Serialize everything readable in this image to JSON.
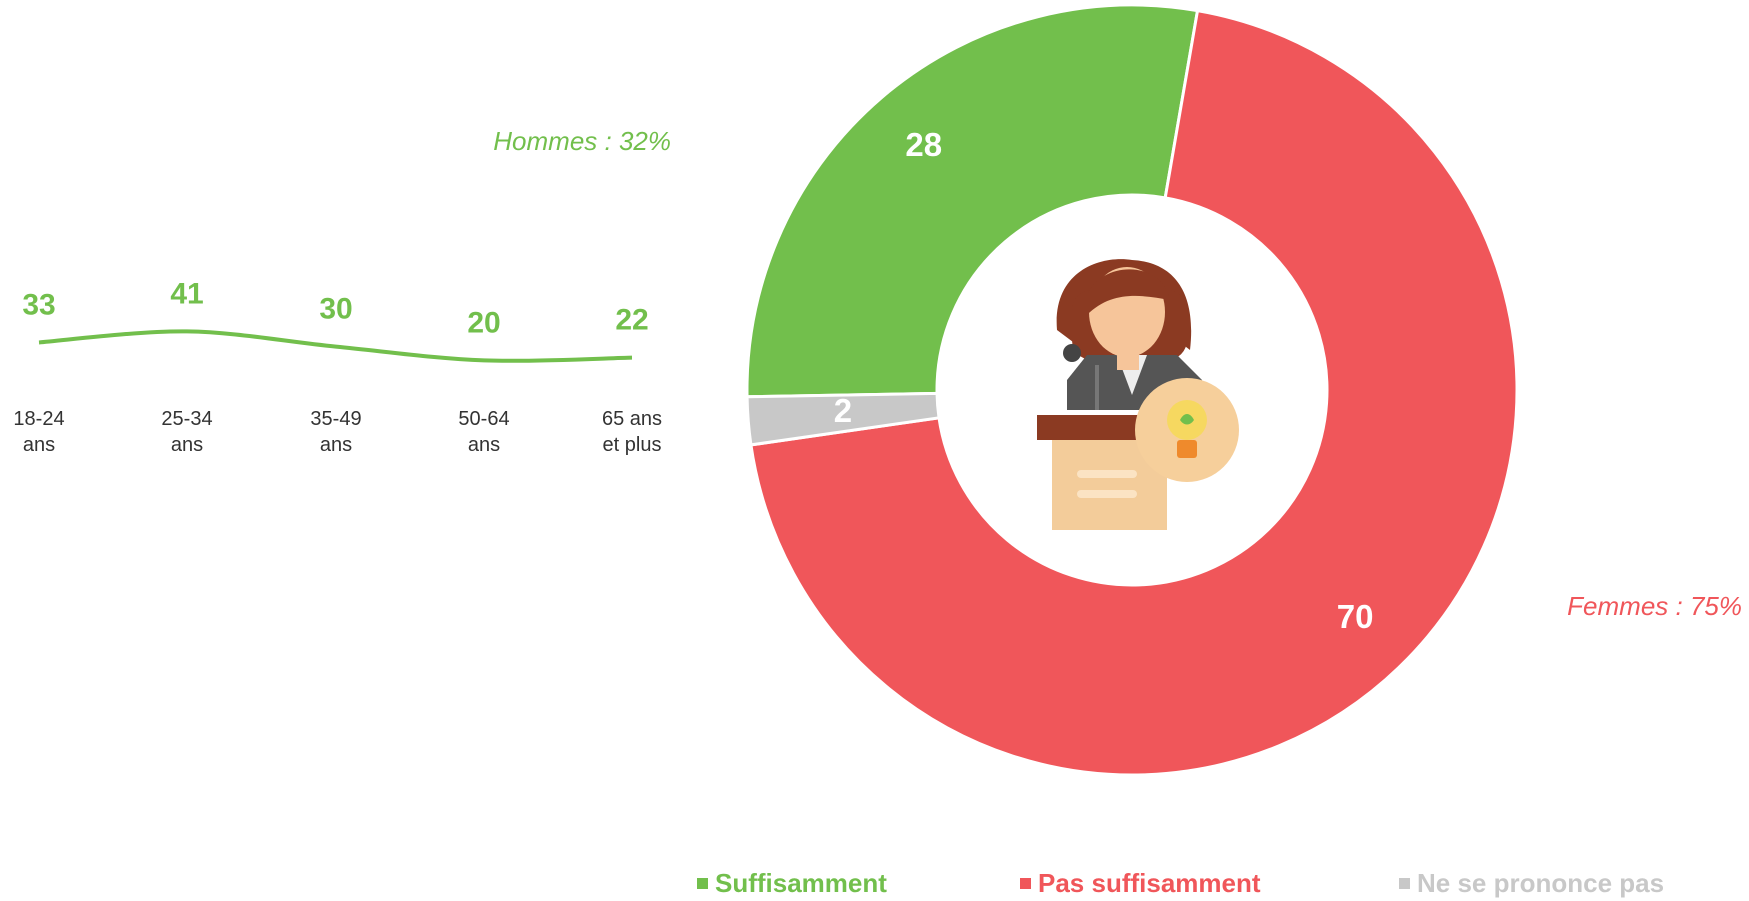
{
  "chart_data": [
    {
      "type": "line",
      "categories": [
        "18-24\nans",
        "25-34\nans",
        "35-49\nans",
        "50-64\nans",
        "65 ans\net plus"
      ],
      "values": [
        33,
        41,
        30,
        20,
        22
      ],
      "color": "#72bf4c"
    },
    {
      "type": "donut",
      "categories": [
        "Suffisamment",
        "Pas suffisamment",
        "Ne se prononce pas"
      ],
      "values": [
        28,
        70,
        2
      ],
      "colors": [
        "#72bf4c",
        "#f0565a",
        "#c8c8c8"
      ],
      "annotations": [
        {
          "text": "Hommes : 32%",
          "color": "#72bf4c"
        },
        {
          "text": "Femmes : 75%",
          "color": "#f0565a"
        }
      ]
    }
  ]
}
